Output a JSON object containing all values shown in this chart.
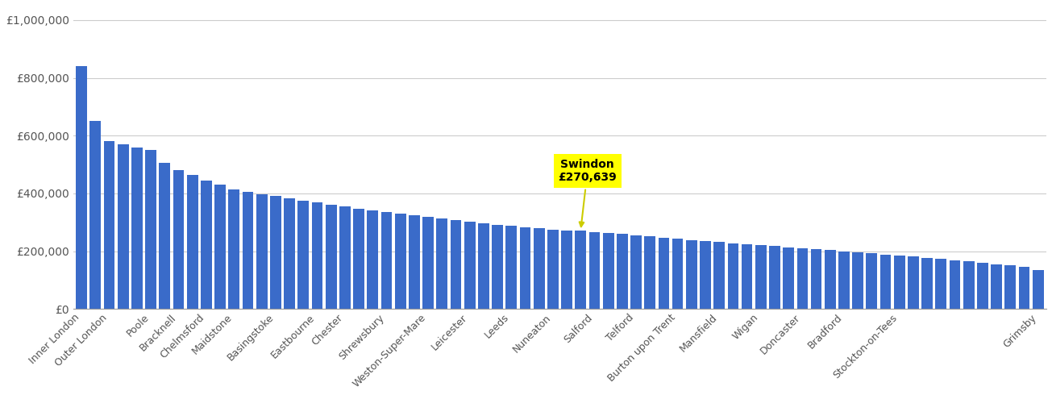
{
  "values_all": [
    840000,
    650000,
    580000,
    570000,
    560000,
    550000,
    505000,
    480000,
    465000,
    445000,
    430000,
    415000,
    405000,
    398000,
    390000,
    383000,
    375000,
    368000,
    362000,
    355000,
    348000,
    342000,
    336000,
    330000,
    324000,
    318000,
    312000,
    307000,
    302000,
    297000,
    292000,
    287000,
    283000,
    279000,
    275000,
    271000,
    270639,
    267000,
    263000,
    259000,
    255000,
    251000,
    247000,
    243000,
    239000,
    235000,
    231000,
    228000,
    224000,
    221000,
    218000,
    214000,
    211000,
    207000,
    203000,
    200000,
    196000,
    193000,
    189000,
    185000,
    181000,
    177000,
    173000,
    169000,
    165000,
    161000,
    155000,
    150000,
    145000,
    135000
  ],
  "swindon_index": 36,
  "swindon_value": 270639,
  "label_indices": [
    0,
    2,
    5,
    7,
    9,
    11,
    14,
    17,
    19,
    22,
    25,
    28,
    31,
    34,
    37,
    40,
    43,
    46,
    49,
    52,
    55,
    59,
    69
  ],
  "xlabels": [
    "Inner London",
    "Outer London",
    "Poole",
    "Bracknell",
    "Chelmsford",
    "Maidstone",
    "Basingstoke",
    "Eastbourne",
    "Chester",
    "Shrewsbury",
    "Weston-Super-Mare",
    "Leicester",
    "Leeds",
    "Nuneaton",
    "Salford",
    "Telford",
    "Burton upon Trent",
    "Mansfield",
    "Wigan",
    "Doncaster",
    "Bradford",
    "Stockton-on-Tees",
    "Grimsby"
  ],
  "bar_color": "#3a6bc9",
  "background_color": "#ffffff",
  "grid_color": "#cccccc",
  "annotation_bg": "#ffff00",
  "annotation_text_color": "#000000",
  "yticks": [
    0,
    200000,
    400000,
    600000,
    800000,
    1000000
  ],
  "ytick_labels": [
    "£0",
    "£200,000",
    "£400,000",
    "£600,000",
    "£800,000",
    "£1,000,000"
  ],
  "swindon_label_line1": "Swindon",
  "swindon_label_line2": "£270,639"
}
